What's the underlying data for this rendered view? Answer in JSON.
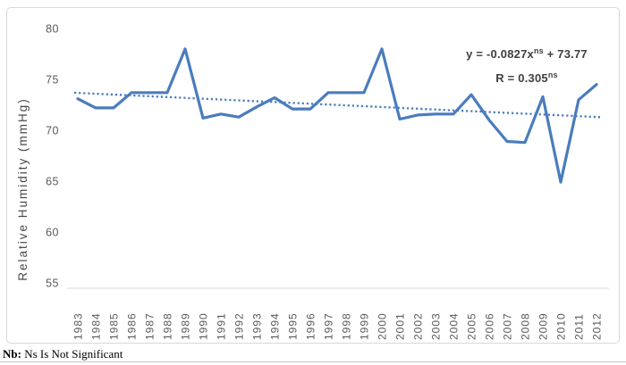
{
  "chart": {
    "y_axis_label": "Relative Humidity (mmHg)",
    "annotation": {
      "eq_prefix": "y = -0.0827x",
      "eq_sup": "ns",
      "eq_suffix": " + 73.77",
      "r_prefix": "R = 0.305",
      "r_sup": "ns"
    },
    "colors": {
      "line": "#4a7cbe",
      "trend": "#4a7cbe",
      "axis_line": "#d9d9d9",
      "tick_text": "#595959",
      "axis_title_text": "#4a4a4a"
    }
  },
  "chart_data": {
    "type": "line",
    "title": "",
    "xlabel": "",
    "ylabel": "Relative Humidity (mmHg)",
    "categories": [
      "1983",
      "1984",
      "1985",
      "1986",
      "1987",
      "1988",
      "1989",
      "1990",
      "1991",
      "1992",
      "1993",
      "1994",
      "1995",
      "1996",
      "1997",
      "1998",
      "1999",
      "2000",
      "2001",
      "2002",
      "2003",
      "2004",
      "2005",
      "2006",
      "2007",
      "2008",
      "2009",
      "2010",
      "2011",
      "2012"
    ],
    "series": [
      {
        "name": "Relative Humidity (mmHg)",
        "values": [
          73.1,
          72.2,
          72.2,
          73.7,
          73.7,
          73.7,
          78.0,
          71.2,
          71.6,
          71.3,
          72.3,
          73.2,
          72.1,
          72.1,
          73.7,
          73.7,
          73.7,
          78.0,
          71.1,
          71.5,
          71.6,
          71.6,
          73.5,
          71.0,
          68.9,
          68.8,
          73.3,
          64.9,
          73.0,
          74.5
        ]
      }
    ],
    "trendline": {
      "style": "dotted",
      "equation": "y = -0.0827x + 73.77",
      "r": "0.305",
      "significance": "ns",
      "start_value": 73.69,
      "end_value": 71.29
    },
    "ylim": [
      55,
      80
    ],
    "yticks": [
      80,
      75,
      70,
      65,
      60,
      55
    ],
    "grid": false,
    "legend": false
  },
  "note": {
    "label": "Nb:",
    "text": " Ns Is Not Significant"
  }
}
